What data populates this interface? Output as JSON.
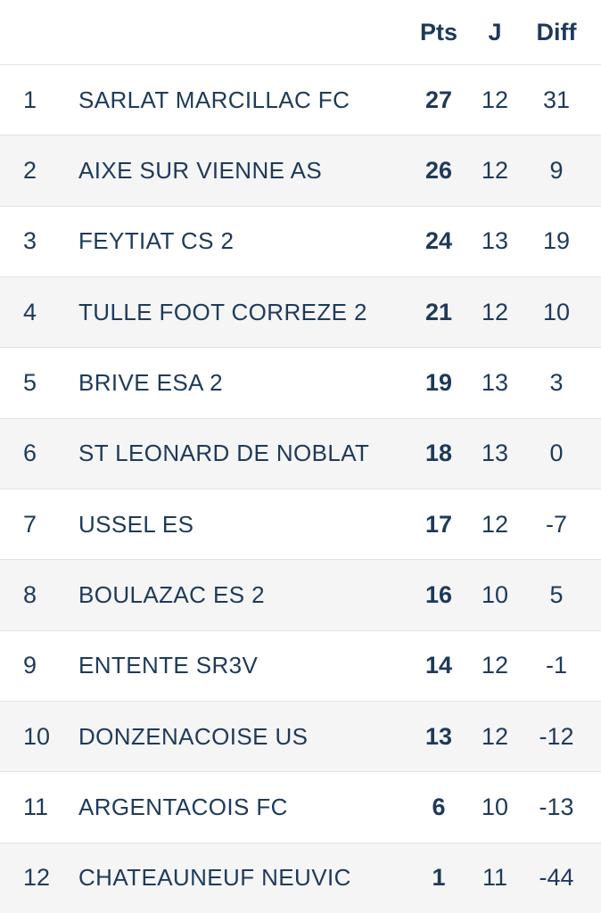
{
  "table": {
    "columns": {
      "points_label": "Pts",
      "played_label": "J",
      "diff_label": "Diff"
    },
    "rows": [
      {
        "rank": "1",
        "team": "SARLAT MARCILLAC FC",
        "points": "27",
        "played": "12",
        "diff": "31"
      },
      {
        "rank": "2",
        "team": "AIXE SUR VIENNE AS",
        "points": "26",
        "played": "12",
        "diff": "9"
      },
      {
        "rank": "3",
        "team": "FEYTIAT CS 2",
        "points": "24",
        "played": "13",
        "diff": "19"
      },
      {
        "rank": "4",
        "team": "TULLE FOOT CORREZE 2",
        "points": "21",
        "played": "12",
        "diff": "10"
      },
      {
        "rank": "5",
        "team": "BRIVE ESA 2",
        "points": "19",
        "played": "13",
        "diff": "3"
      },
      {
        "rank": "6",
        "team": "ST LEONARD DE NOBLAT",
        "points": "18",
        "played": "13",
        "diff": "0"
      },
      {
        "rank": "7",
        "team": "USSEL ES",
        "points": "17",
        "played": "12",
        "diff": "-7"
      },
      {
        "rank": "8",
        "team": "BOULAZAC ES 2",
        "points": "16",
        "played": "10",
        "diff": "5"
      },
      {
        "rank": "9",
        "team": "ENTENTE SR3V",
        "points": "14",
        "played": "12",
        "diff": "-1"
      },
      {
        "rank": "10",
        "team": "DONZENACOISE US",
        "points": "13",
        "played": "12",
        "diff": "-12"
      },
      {
        "rank": "11",
        "team": "ARGENTACOIS FC",
        "points": "6",
        "played": "10",
        "diff": "-13"
      },
      {
        "rank": "12",
        "team": "CHATEAUNEUF NEUVIC",
        "points": "1",
        "played": "11",
        "diff": "-44"
      }
    ]
  },
  "colors": {
    "text": "#1e3a5a",
    "row_alt_background": "#f5f5f5",
    "separator": "#e2e2e2",
    "background": "#ffffff"
  }
}
